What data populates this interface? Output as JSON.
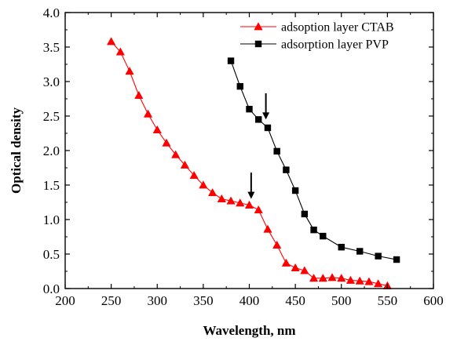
{
  "chart_data": {
    "type": "line",
    "title": "",
    "xlabel": "Wavelength, nm",
    "ylabel": "Optical density",
    "xlim": [
      200,
      600
    ],
    "ylim": [
      0.0,
      4.0
    ],
    "xticks": [
      200,
      250,
      300,
      350,
      400,
      450,
      500,
      550,
      600
    ],
    "xtick_labels": [
      "200",
      "250",
      "300",
      "350",
      "400",
      "450",
      "500",
      "550",
      "600"
    ],
    "yticks": [
      0.0,
      0.5,
      1.0,
      1.5,
      2.0,
      2.5,
      3.0,
      3.5,
      4.0
    ],
    "ytick_labels": [
      "0.0",
      "0.5",
      "1.0",
      "1.5",
      "2.0",
      "2.5",
      "3.0",
      "3.5",
      "4.0"
    ],
    "grid": false,
    "legend_position": "top-right",
    "series": [
      {
        "name": "adsoption layer CTAB",
        "color": "#ff0000",
        "marker": "triangle",
        "x": [
          250,
          260,
          270,
          280,
          290,
          300,
          310,
          320,
          330,
          340,
          350,
          360,
          370,
          380,
          390,
          400,
          410,
          420,
          430,
          440,
          450,
          460,
          470,
          480,
          490,
          500,
          510,
          520,
          530,
          540,
          550
        ],
        "y": [
          3.58,
          3.43,
          3.15,
          2.8,
          2.53,
          2.3,
          2.11,
          1.94,
          1.79,
          1.64,
          1.5,
          1.39,
          1.3,
          1.27,
          1.24,
          1.21,
          1.14,
          0.86,
          0.63,
          0.37,
          0.3,
          0.26,
          0.15,
          0.15,
          0.16,
          0.15,
          0.12,
          0.11,
          0.1,
          0.07,
          0.04
        ]
      },
      {
        "name": "adsorption layer PVP",
        "color": "#000000",
        "marker": "square",
        "x": [
          380,
          390,
          400,
          410,
          420,
          430,
          440,
          450,
          460,
          470,
          480,
          500,
          520,
          540,
          560
        ],
        "y": [
          3.3,
          2.93,
          2.6,
          2.45,
          2.33,
          1.99,
          1.72,
          1.42,
          1.08,
          0.85,
          0.76,
          0.6,
          0.54,
          0.47,
          0.42
        ]
      }
    ],
    "annotations": [
      {
        "type": "arrow",
        "x": 402,
        "y_from": 1.68,
        "y_to": 1.3
      },
      {
        "type": "arrow",
        "x": 418,
        "y_from": 2.83,
        "y_to": 2.45
      }
    ]
  }
}
